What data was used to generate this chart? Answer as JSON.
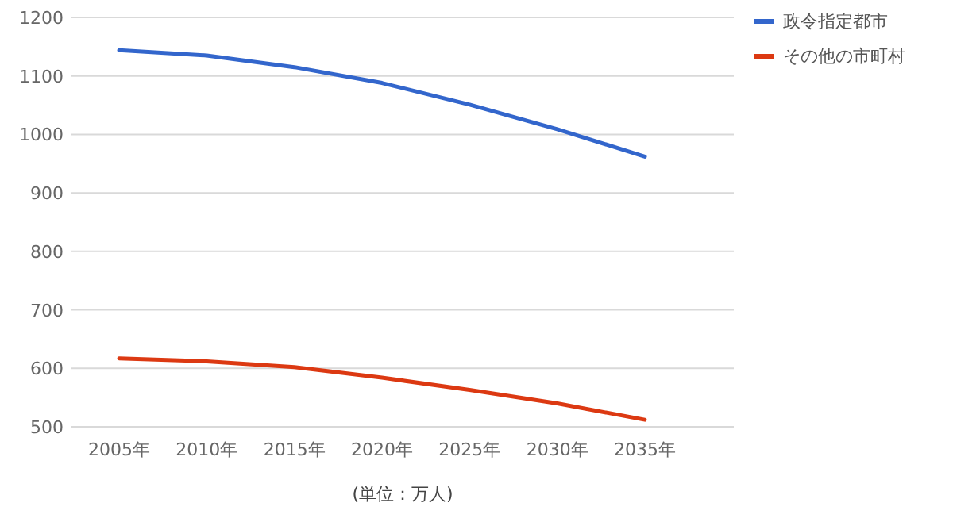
{
  "chart_data": {
    "type": "line",
    "categories": [
      "2005年",
      "2010年",
      "2015年",
      "2020年",
      "2025年",
      "2030年",
      "2035年"
    ],
    "series": [
      {
        "name": "政令指定都市",
        "color": "#3366cc",
        "values": [
          1144,
          1135,
          1115,
          1088,
          1051,
          1009,
          962
        ]
      },
      {
        "name": "その他の市町村",
        "color": "#dc3912",
        "values": [
          617,
          612,
          602,
          584,
          563,
          540,
          512
        ]
      }
    ],
    "ylim": [
      500,
      1200
    ],
    "yticks": [
      500,
      600,
      700,
      800,
      900,
      1000,
      1100,
      1200
    ],
    "grid": "y",
    "legend": "right",
    "annotations": [
      "(単位：万人)"
    ]
  }
}
